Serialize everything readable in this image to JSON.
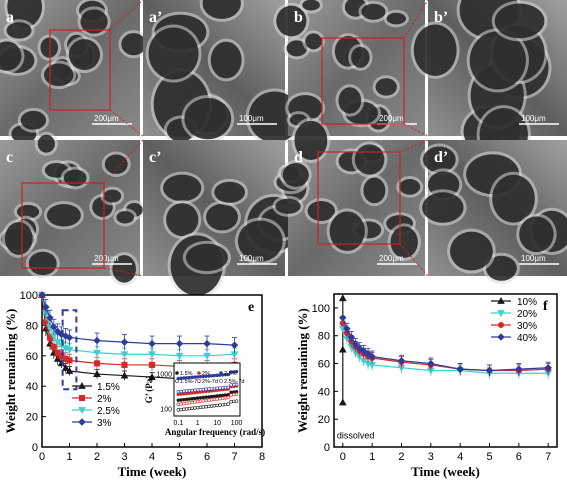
{
  "micrographs": [
    {
      "label": "a",
      "scale_bar": "200μm"
    },
    {
      "label": "a’",
      "scale_bar": "100μm"
    },
    {
      "label": "b",
      "scale_bar": "200μm"
    },
    {
      "label": "b’",
      "scale_bar": "100μm"
    },
    {
      "label": "c",
      "scale_bar": "200μm"
    },
    {
      "label": "c’",
      "scale_bar": "100μm"
    },
    {
      "label": "d",
      "scale_bar": "200μm"
    },
    {
      "label": "d’",
      "scale_bar": "100μm"
    }
  ],
  "colors": {
    "black": "#1a1a1a",
    "red": "#d42a2a",
    "cyan": "#3fcfd0",
    "blue": "#2e3c9c",
    "inset_box": "#2e3c9c",
    "zoom_box": "#cc2222"
  },
  "chart_data": [
    {
      "type": "line",
      "panel_label": "e",
      "xlabel": "Time (week)",
      "ylabel": "Weight remaining (%)",
      "xlim": [
        0,
        8
      ],
      "ylim": [
        0,
        100
      ],
      "xticks": [
        0,
        1,
        2,
        3,
        4,
        5,
        6,
        7,
        8
      ],
      "yticks": [
        0,
        20,
        40,
        60,
        80,
        100
      ],
      "legend_position": "lower-left",
      "series": [
        {
          "name": "1.5%",
          "color": "#1a1a1a",
          "marker": "triangle",
          "x": [
            0,
            0.14,
            0.29,
            0.43,
            0.57,
            0.71,
            0.86,
            1,
            2,
            3,
            4,
            5,
            6,
            7
          ],
          "y": [
            100,
            78,
            68,
            62,
            58,
            55,
            52,
            50,
            48,
            47,
            46,
            45,
            44,
            44
          ],
          "err": [
            0,
            5,
            4,
            4,
            4,
            3,
            3,
            3,
            3,
            3,
            3,
            3,
            3,
            3
          ]
        },
        {
          "name": "2%",
          "color": "#d42a2a",
          "marker": "square",
          "x": [
            0,
            0.14,
            0.29,
            0.43,
            0.57,
            0.71,
            0.86,
            1,
            2,
            3,
            4,
            5,
            6,
            7
          ],
          "y": [
            100,
            82,
            72,
            66,
            62,
            60,
            58,
            57,
            55,
            54,
            54,
            53,
            53,
            54
          ],
          "err": [
            0,
            5,
            5,
            4,
            4,
            4,
            4,
            4,
            4,
            4,
            4,
            4,
            4,
            4
          ]
        },
        {
          "name": "2.5%",
          "color": "#3fcfd0",
          "marker": "triangle-down",
          "x": [
            0,
            0.14,
            0.29,
            0.43,
            0.57,
            0.71,
            0.86,
            1,
            2,
            3,
            4,
            5,
            6,
            7
          ],
          "y": [
            100,
            88,
            79,
            73,
            69,
            67,
            65,
            64,
            62,
            61,
            61,
            60,
            60,
            61
          ],
          "err": [
            0,
            5,
            5,
            5,
            5,
            4,
            4,
            4,
            4,
            4,
            4,
            4,
            4,
            4
          ]
        },
        {
          "name": "3%",
          "color": "#2e3c9c",
          "marker": "diamond",
          "x": [
            0,
            0.14,
            0.29,
            0.43,
            0.57,
            0.71,
            0.86,
            1,
            2,
            3,
            4,
            5,
            6,
            7
          ],
          "y": [
            100,
            92,
            85,
            79,
            76,
            74,
            73,
            72,
            70,
            69,
            68,
            68,
            68,
            67
          ],
          "err": [
            0,
            5,
            5,
            5,
            5,
            5,
            5,
            5,
            5,
            5,
            5,
            5,
            5,
            5
          ]
        }
      ],
      "inset": {
        "type": "scatter",
        "xlabel": "Angular frequency (rad/s)",
        "ylabel": "G’ (Pa)",
        "xscale": "log",
        "yscale": "log",
        "xlim": [
          0.06,
          150
        ],
        "ylim": [
          60,
          2000
        ],
        "xticks": [
          0.1,
          1,
          10,
          100
        ],
        "xtick_labels": [
          "0.1",
          "1",
          "10",
          "100"
        ],
        "yticks": [
          100,
          1000
        ],
        "ytick_labels": [
          "100",
          "1000"
        ],
        "legend": [
          "1.5%",
          "2%",
          "2.5%",
          "1.5%-7d",
          "2%-7d",
          "2.5%-7d"
        ],
        "series": [
          {
            "name": "1.5%",
            "color": "#1a1a1a",
            "filled": true,
            "start": 170,
            "end": 260
          },
          {
            "name": "2%",
            "color": "#d42a2a",
            "filled": true,
            "start": 250,
            "end": 380
          },
          {
            "name": "2.5%",
            "color": "#2e3c9c",
            "filled": true,
            "start": 720,
            "end": 980
          },
          {
            "name": "1.5%-7d",
            "color": "#1a1a1a",
            "filled": false,
            "start": 90,
            "end": 140
          },
          {
            "name": "2%-7d",
            "color": "#d42a2a",
            "filled": false,
            "start": 130,
            "end": 220
          },
          {
            "name": "2.5%-7d",
            "color": "#2e3c9c",
            "filled": false,
            "start": 300,
            "end": 420
          }
        ]
      }
    },
    {
      "type": "line",
      "panel_label": "f",
      "xlabel": "Time (week)",
      "ylabel": "Weight remaining (%)",
      "xlim": [
        -0.3,
        7.3
      ],
      "ylim": [
        0,
        110
      ],
      "xticks": [
        0,
        1,
        2,
        3,
        4,
        5,
        6,
        7
      ],
      "yticks": [
        0,
        20,
        40,
        60,
        80,
        100
      ],
      "legend_position": "top-right",
      "annotation": "dissolved",
      "series": [
        {
          "name": "10%",
          "color": "#1a1a1a",
          "marker": "triangle",
          "x": [
            0,
            0,
            0
          ],
          "y": [
            107,
            70,
            32
          ],
          "err": [
            0,
            0,
            0
          ]
        },
        {
          "name": "20%",
          "color": "#3fcfd0",
          "marker": "triangle-down",
          "x": [
            0,
            0.14,
            0.29,
            0.43,
            0.57,
            0.71,
            0.86,
            1,
            2,
            3,
            4,
            5,
            6,
            7
          ],
          "y": [
            85,
            78,
            72,
            68,
            65,
            62,
            60,
            59,
            57,
            55,
            55,
            53,
            53,
            53
          ],
          "err": [
            0,
            4,
            4,
            4,
            4,
            4,
            4,
            4,
            4,
            4,
            4,
            4,
            4,
            4
          ]
        },
        {
          "name": "30%",
          "color": "#d42a2a",
          "marker": "circle",
          "x": [
            0,
            0.14,
            0.29,
            0.43,
            0.57,
            0.71,
            0.86,
            1,
            2,
            3,
            4,
            5,
            6,
            7
          ],
          "y": [
            89,
            82,
            76,
            72,
            69,
            67,
            65,
            64,
            61,
            59,
            56,
            55,
            55,
            56
          ],
          "err": [
            0,
            4,
            4,
            4,
            4,
            4,
            4,
            4,
            4,
            4,
            4,
            4,
            4,
            4
          ]
        },
        {
          "name": "40%",
          "color": "#2e3c9c",
          "marker": "diamond",
          "x": [
            0,
            0.14,
            0.29,
            0.43,
            0.57,
            0.71,
            0.86,
            1,
            2,
            3,
            4,
            5,
            6,
            7
          ],
          "y": [
            93,
            85,
            79,
            74,
            71,
            69,
            67,
            65,
            62,
            60,
            56,
            55,
            56,
            57
          ],
          "err": [
            0,
            4,
            4,
            4,
            4,
            4,
            4,
            4,
            4,
            4,
            4,
            4,
            4,
            4
          ]
        }
      ]
    }
  ]
}
